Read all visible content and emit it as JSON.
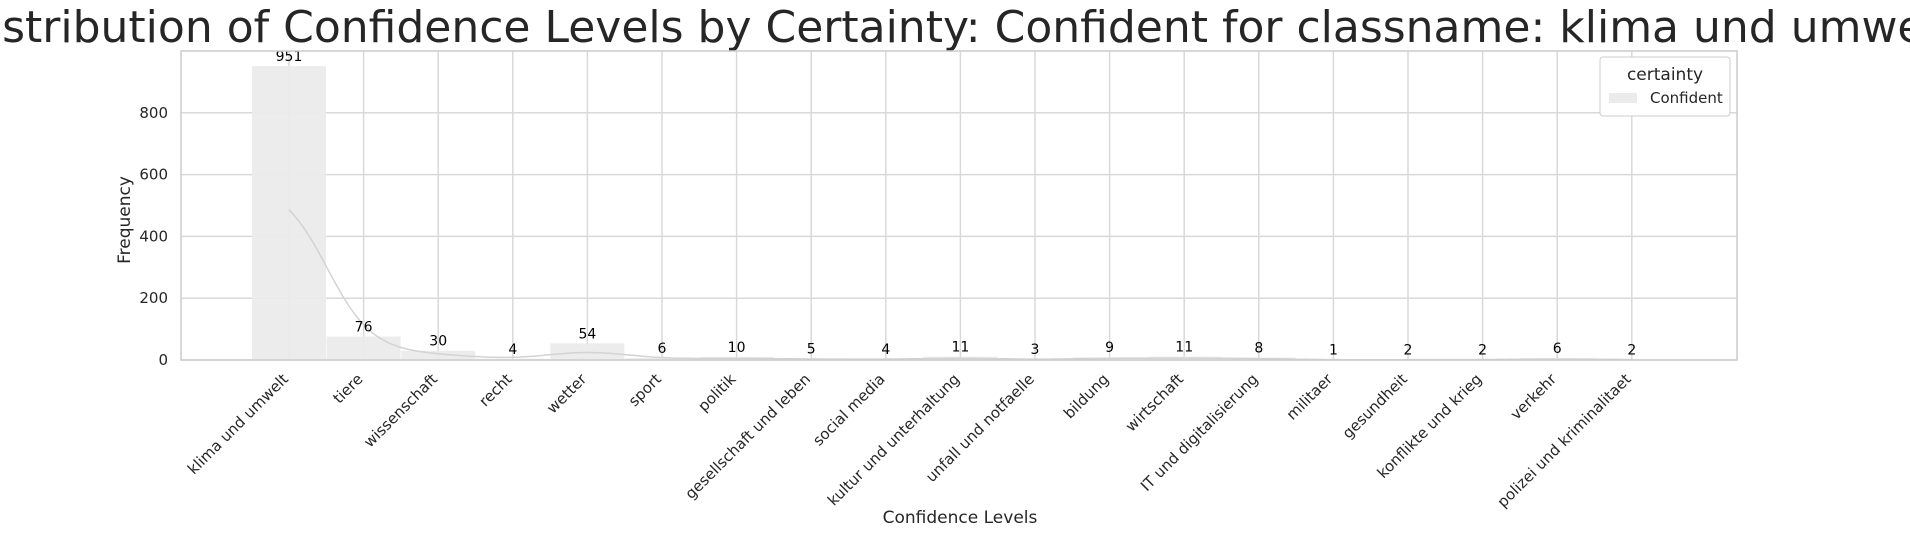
{
  "chart_data": {
    "type": "bar",
    "title": "Distribution of Confidence Levels by Certainty: Confident for classname: klima und umwelt",
    "xlabel": "Confidence Levels",
    "ylabel": "Frequency",
    "ylim": [
      0,
      1000
    ],
    "yticks": [
      0,
      200,
      400,
      600,
      800
    ],
    "grid": true,
    "kde_curve": true,
    "legend": {
      "title": "certainty",
      "position": "top-right"
    },
    "categories": [
      "klima und umwelt",
      "tiere",
      "wissenschaft",
      "recht",
      "wetter",
      "sport",
      "politik",
      "gesellschaft und leben",
      "social media",
      "kultur und unterhaltung",
      "unfall und notfaelle",
      "bildung",
      "wirtschaft",
      "IT und digitalisierung",
      "militaer",
      "gesundheit",
      "konflikte und krieg",
      "verkehr",
      "polizei und kriminalitaet"
    ],
    "series": [
      {
        "name": "Confident",
        "color": "#ebebeb",
        "values": [
          951,
          76,
          30,
          4,
          54,
          6,
          10,
          5,
          4,
          11,
          3,
          9,
          11,
          8,
          1,
          2,
          2,
          6,
          2
        ]
      }
    ],
    "colors": {
      "kde_line": "#d3d3d3",
      "grid": "#d9d9d9",
      "spine": "#cccccc"
    }
  }
}
